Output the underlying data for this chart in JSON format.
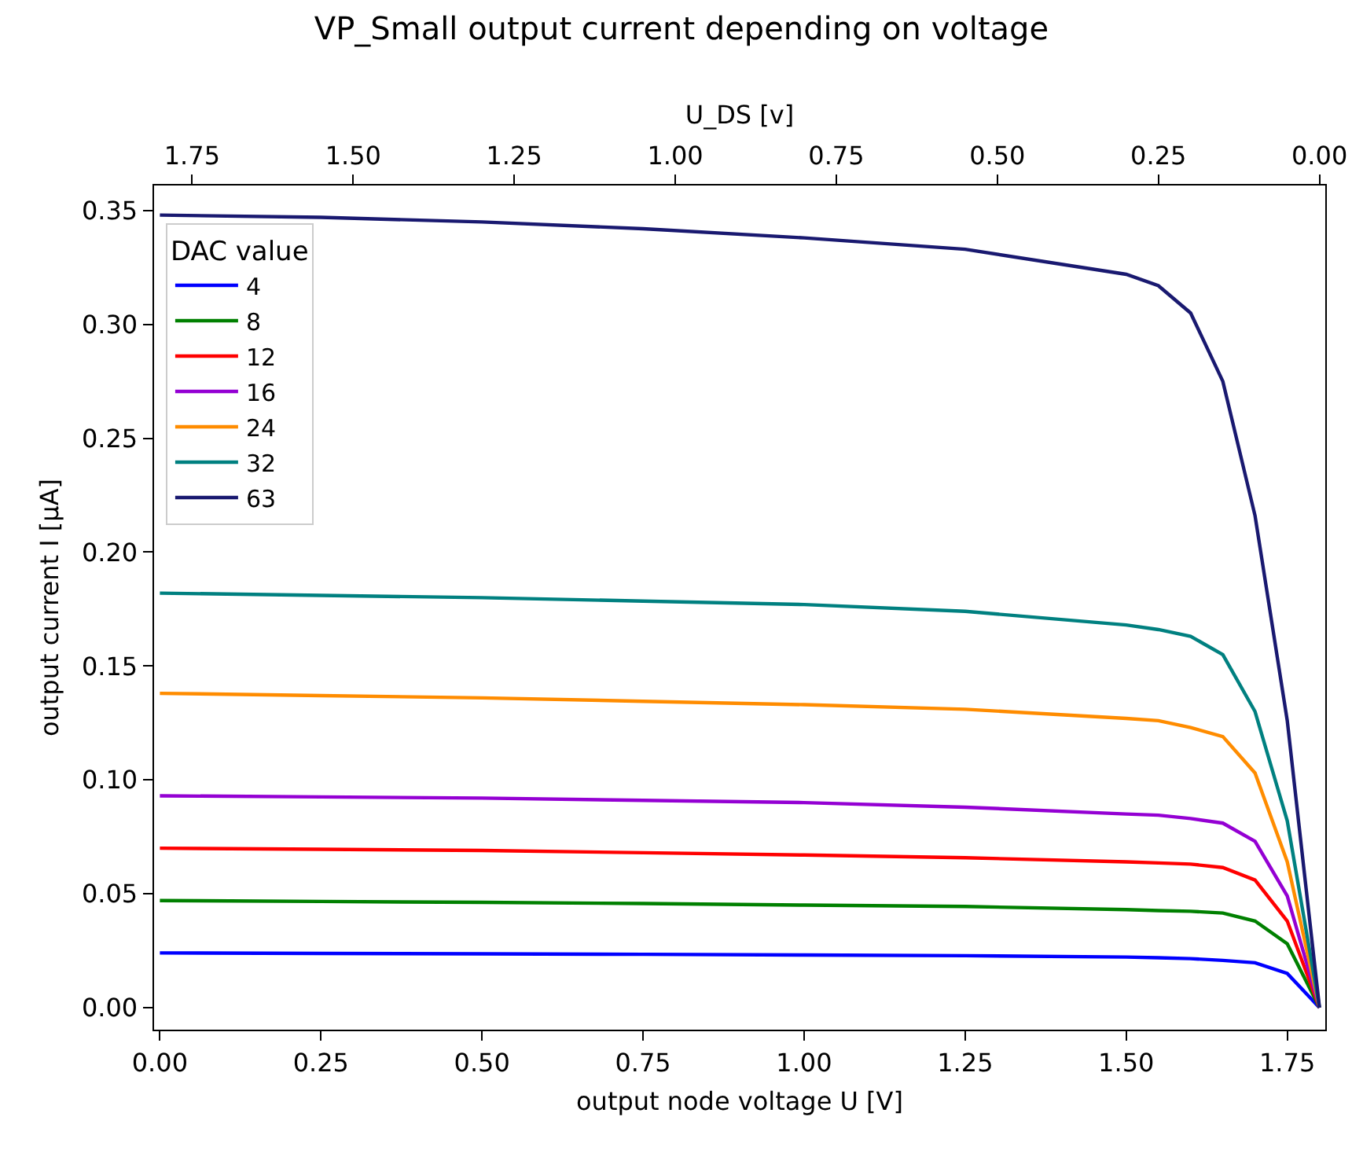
{
  "chart_data": {
    "type": "line",
    "title": "VP_Small output current depending on voltage",
    "xlabel": "output node voltage U [V]",
    "ylabel": "output current I [µA]",
    "x2label": "U_DS [v]",
    "legend_title": "DAC value",
    "legend": "top left",
    "grid": false,
    "x": [
      0,
      0.25,
      0.5,
      0.75,
      1.0,
      1.25,
      1.5,
      1.55,
      1.6,
      1.65,
      1.7,
      1.75,
      1.8
    ],
    "series": [
      {
        "name": "4",
        "color": "#0000ff",
        "values": [
          0.024,
          0.0238,
          0.0236,
          0.0234,
          0.0231,
          0.0228,
          0.0222,
          0.0219,
          0.0215,
          0.0207,
          0.0197,
          0.015,
          0
        ]
      },
      {
        "name": "8",
        "color": "#008000",
        "values": [
          0.047,
          0.0466,
          0.0462,
          0.0457,
          0.045,
          0.0444,
          0.043,
          0.0426,
          0.0423,
          0.0415,
          0.038,
          0.028,
          0
        ]
      },
      {
        "name": "12",
        "color": "#ff0000",
        "values": [
          0.07,
          0.0695,
          0.069,
          0.068,
          0.067,
          0.0658,
          0.064,
          0.0635,
          0.063,
          0.0615,
          0.056,
          0.038,
          0
        ]
      },
      {
        "name": "16",
        "color": "#9400d3",
        "values": [
          0.093,
          0.0925,
          0.092,
          0.091,
          0.09,
          0.088,
          0.085,
          0.0845,
          0.083,
          0.081,
          0.073,
          0.049,
          0
        ]
      },
      {
        "name": "24",
        "color": "#ff8c00",
        "values": [
          0.138,
          0.137,
          0.136,
          0.1345,
          0.133,
          0.131,
          0.127,
          0.126,
          0.123,
          0.119,
          0.103,
          0.064,
          0
        ]
      },
      {
        "name": "32",
        "color": "#008080",
        "values": [
          0.182,
          0.181,
          0.18,
          0.1785,
          0.177,
          0.174,
          0.168,
          0.166,
          0.163,
          0.155,
          0.13,
          0.082,
          0
        ]
      },
      {
        "name": "63",
        "color": "#191970",
        "values": [
          0.348,
          0.347,
          0.345,
          0.342,
          0.338,
          0.333,
          0.322,
          0.317,
          0.305,
          0.275,
          0.216,
          0.126,
          0
        ]
      }
    ],
    "xlim": [
      -0.009,
      1.809
    ],
    "ylim": [
      -0.0097,
      0.361
    ],
    "x2lim": [
      1.809,
      -0.009
    ],
    "xticks": [
      {
        "value": 0,
        "label": "0.00"
      },
      {
        "value": 0.25,
        "label": "0.25"
      },
      {
        "value": 0.5,
        "label": "0.50"
      },
      {
        "value": 0.75,
        "label": "0.75"
      },
      {
        "value": 1.0,
        "label": "1.00"
      },
      {
        "value": 1.25,
        "label": "1.25"
      },
      {
        "value": 1.5,
        "label": "1.50"
      },
      {
        "value": 1.75,
        "label": "1.75"
      }
    ],
    "x2ticks": [
      {
        "value": 1.75,
        "label": "1.75"
      },
      {
        "value": 1.5,
        "label": "1.50"
      },
      {
        "value": 1.25,
        "label": "1.25"
      },
      {
        "value": 1.0,
        "label": "1.00"
      },
      {
        "value": 0.75,
        "label": "0.75"
      },
      {
        "value": 0.5,
        "label": "0.50"
      },
      {
        "value": 0.25,
        "label": "0.25"
      },
      {
        "value": 0,
        "label": "0.00"
      }
    ],
    "yticks": [
      {
        "value": 0,
        "label": "0.00"
      },
      {
        "value": 0.05,
        "label": "0.05"
      },
      {
        "value": 0.1,
        "label": "0.10"
      },
      {
        "value": 0.15,
        "label": "0.15"
      },
      {
        "value": 0.2,
        "label": "0.20"
      },
      {
        "value": 0.25,
        "label": "0.25"
      },
      {
        "value": 0.3,
        "label": "0.30"
      },
      {
        "value": 0.35,
        "label": "0.35"
      }
    ]
  }
}
